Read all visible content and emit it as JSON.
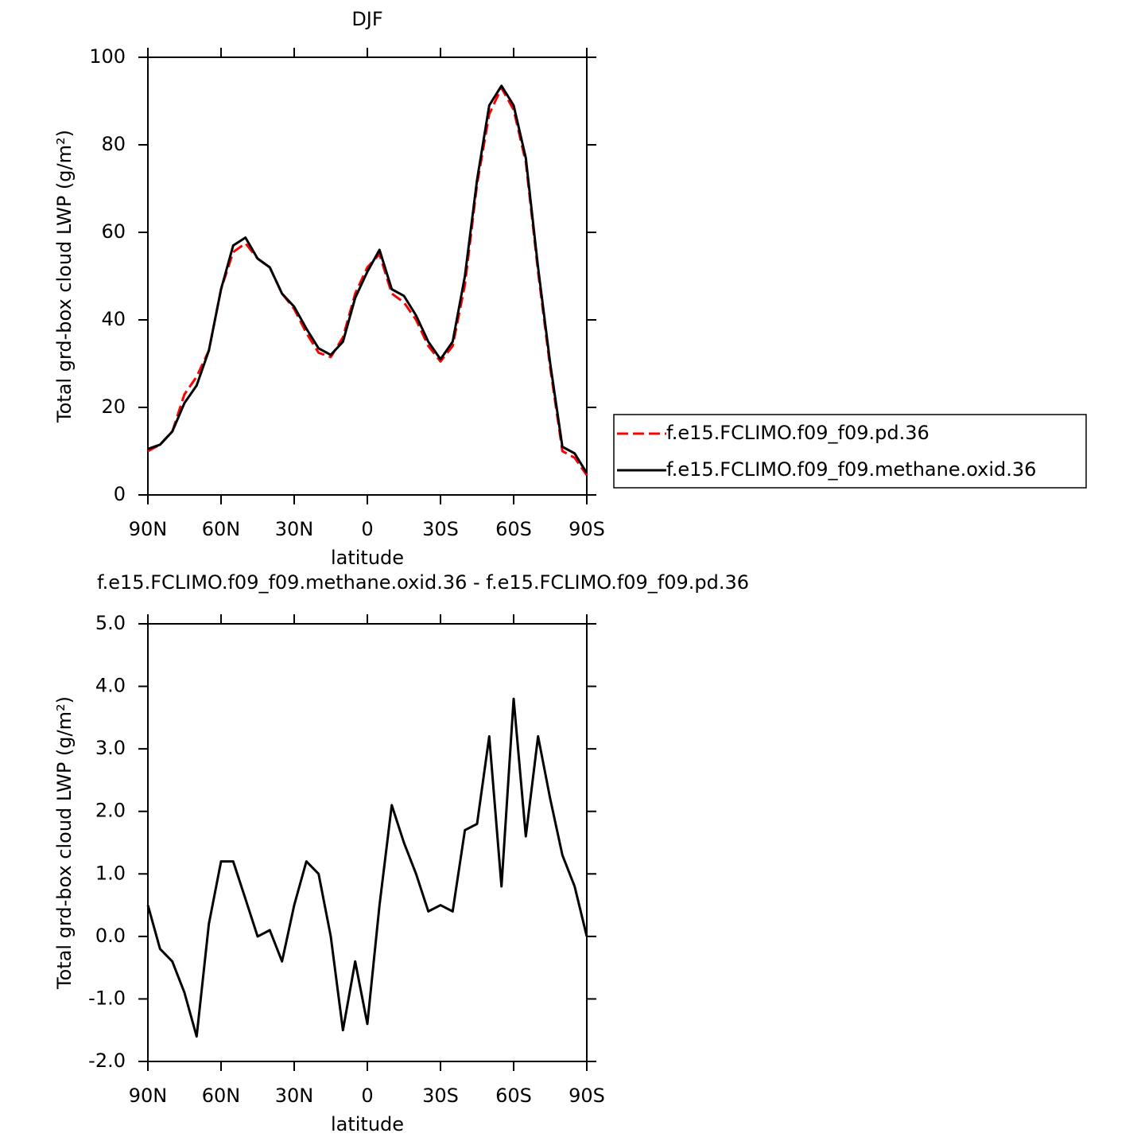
{
  "chart_data": [
    {
      "type": "line",
      "title": "DJF",
      "xlabel": "latitude",
      "ylabel": "Total grd-box cloud LWP (g/m²)",
      "x": [
        90,
        85,
        80,
        75,
        70,
        65,
        60,
        55,
        50,
        45,
        40,
        35,
        30,
        25,
        20,
        15,
        10,
        5,
        0,
        -5,
        -10,
        -15,
        -20,
        -25,
        -30,
        -35,
        -40,
        -45,
        -50,
        -55,
        -60,
        -65,
        -70,
        -75,
        -80,
        -85,
        -90
      ],
      "xlim": [
        90,
        -90
      ],
      "xticks": [
        {
          "value": 90,
          "label": "90N"
        },
        {
          "value": 60,
          "label": "60N"
        },
        {
          "value": 30,
          "label": "30N"
        },
        0,
        {
          "value": -30,
          "label": "30S"
        },
        {
          "value": -60,
          "label": "60S"
        },
        {
          "value": -90,
          "label": "90S"
        }
      ],
      "ylim": [
        0,
        100
      ],
      "yticks": [
        0,
        20,
        40,
        60,
        80,
        100
      ],
      "legend": "right",
      "series": [
        {
          "name": "f.e15.FCLIMO.f09_f09.pd.36",
          "color": "#ff0000",
          "linestyle": "dashed",
          "values": [
            10,
            11.5,
            14.5,
            23,
            27,
            33,
            47,
            55.5,
            57.5,
            54,
            52,
            46,
            42.5,
            37,
            32.5,
            31.5,
            36,
            46,
            52,
            55,
            46,
            44,
            40,
            34,
            30.5,
            34,
            48,
            71,
            87,
            93,
            88,
            76,
            51,
            29,
            10,
            8.5,
            4.5
          ]
        },
        {
          "name": "f.e15.FCLIMO.f09_f09.methane.oxid.36",
          "color": "#000000",
          "linestyle": "solid",
          "values": [
            10.5,
            11.5,
            14.5,
            21,
            25,
            33,
            47,
            57,
            58.8,
            54,
            52,
            46,
            43,
            38,
            33.5,
            32,
            35,
            45,
            51,
            56,
            47,
            45.5,
            41,
            35,
            31,
            35,
            50,
            72,
            89,
            93.5,
            89,
            77,
            52,
            30,
            11,
            9.5,
            5
          ]
        }
      ]
    },
    {
      "type": "line",
      "title": "f.e15.FCLIMO.f09_f09.methane.oxid.36 - f.e15.FCLIMO.f09_f09.pd.36",
      "xlabel": "latitude",
      "ylabel": "Total grd-box cloud LWP (g/m²)",
      "x": [
        90,
        85,
        80,
        75,
        70,
        65,
        60,
        55,
        50,
        45,
        40,
        35,
        30,
        25,
        20,
        15,
        10,
        5,
        0,
        -5,
        -10,
        -15,
        -20,
        -25,
        -30,
        -35,
        -40,
        -45,
        -50,
        -55,
        -60,
        -65,
        -70,
        -75,
        -80,
        -85,
        -90
      ],
      "xlim": [
        90,
        -90
      ],
      "xticks": [
        {
          "value": 90,
          "label": "90N"
        },
        {
          "value": 60,
          "label": "60N"
        },
        {
          "value": 30,
          "label": "30N"
        },
        0,
        {
          "value": -30,
          "label": "30S"
        },
        {
          "value": -60,
          "label": "60S"
        },
        {
          "value": -90,
          "label": "90S"
        }
      ],
      "ylim": [
        -2,
        5
      ],
      "yticks": [
        {
          "value": -2,
          "label": "-2.0"
        },
        {
          "value": -1,
          "label": "-1.0"
        },
        {
          "value": 0,
          "label": "0.0"
        },
        {
          "value": 1,
          "label": "1.0"
        },
        {
          "value": 2,
          "label": "2.0"
        },
        {
          "value": 3,
          "label": "3.0"
        },
        {
          "value": 4,
          "label": "4.0"
        },
        {
          "value": 5,
          "label": "5.0"
        }
      ],
      "series": [
        {
          "color": "#000000",
          "linestyle": "solid",
          "values": [
            0.5,
            -0.2,
            -0.4,
            -0.9,
            -1.6,
            0.2,
            1.2,
            1.2,
            0.6,
            0.0,
            0.1,
            -0.4,
            0.5,
            1.2,
            1.0,
            0.0,
            -1.5,
            -0.4,
            -1.4,
            0.5,
            2.1,
            1.5,
            1.0,
            0.4,
            0.5,
            0.4,
            1.7,
            1.8,
            3.2,
            0.8,
            3.8,
            1.6,
            3.2,
            2.2,
            1.3,
            0.8,
            0.0
          ]
        }
      ]
    }
  ]
}
